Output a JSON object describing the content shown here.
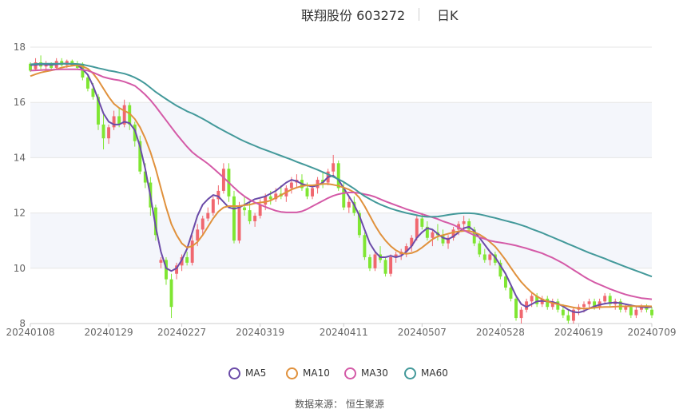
{
  "header": {
    "title": "联翔股份 603272",
    "period": "日K"
  },
  "footer": {
    "source": "数据来源： 恒生聚源"
  },
  "colors": {
    "up": "#f0676f",
    "down": "#7fe632",
    "grid": "#e6e6e6",
    "band": "#f4f6fb",
    "axis": "#666666"
  },
  "chart_data": {
    "type": "candlestick",
    "y_ticks": [
      "8",
      "10",
      "12",
      "14",
      "16",
      "18"
    ],
    "ylim": [
      8,
      18
    ],
    "x_ticks": [
      "20240108",
      "20240129",
      "20240227",
      "20240319",
      "20240411",
      "20240507",
      "20240528",
      "20240619",
      "20240709"
    ],
    "x_tick_index": [
      0,
      15,
      29,
      44,
      60,
      75,
      90,
      105,
      119
    ],
    "n_days": 120,
    "candles_ohlc": [
      [
        17.4,
        17.45,
        17.1,
        17.15
      ],
      [
        17.2,
        17.6,
        17.15,
        17.45
      ],
      [
        17.45,
        17.7,
        17.2,
        17.3
      ],
      [
        17.3,
        17.5,
        17.15,
        17.35
      ],
      [
        17.35,
        17.45,
        17.2,
        17.25
      ],
      [
        17.25,
        17.6,
        17.2,
        17.5
      ],
      [
        17.5,
        17.6,
        17.3,
        17.35
      ],
      [
        17.35,
        17.55,
        17.25,
        17.5
      ],
      [
        17.5,
        17.55,
        17.3,
        17.35
      ],
      [
        17.35,
        17.5,
        17.2,
        17.25
      ],
      [
        17.4,
        17.45,
        16.8,
        16.9
      ],
      [
        16.9,
        17.0,
        16.4,
        16.5
      ],
      [
        16.5,
        16.7,
        16.1,
        16.2
      ],
      [
        16.2,
        16.3,
        15.0,
        15.2
      ],
      [
        15.2,
        15.6,
        14.3,
        14.7
      ],
      [
        14.7,
        15.2,
        14.5,
        15.1
      ],
      [
        15.1,
        15.7,
        15.0,
        15.5
      ],
      [
        15.5,
        15.8,
        15.1,
        15.2
      ],
      [
        15.2,
        16.1,
        15.1,
        15.9
      ],
      [
        15.9,
        16.0,
        15.0,
        15.2
      ],
      [
        15.2,
        15.3,
        14.4,
        14.6
      ],
      [
        14.6,
        14.8,
        13.4,
        13.5
      ],
      [
        13.5,
        13.8,
        12.9,
        13.1
      ],
      [
        13.1,
        13.3,
        11.9,
        12.2
      ],
      [
        12.2,
        12.3,
        11.0,
        11.2
      ],
      [
        10.2,
        10.4,
        10.0,
        10.3
      ],
      [
        10.3,
        10.4,
        9.4,
        9.6
      ],
      [
        9.6,
        9.8,
        8.2,
        8.6
      ],
      [
        9.8,
        10.2,
        9.6,
        10.1
      ],
      [
        10.1,
        10.5,
        9.9,
        10.4
      ],
      [
        10.4,
        10.6,
        10.1,
        10.2
      ],
      [
        10.2,
        11.2,
        10.1,
        11.0
      ],
      [
        11.0,
        11.6,
        10.8,
        11.4
      ],
      [
        11.4,
        11.9,
        11.2,
        11.8
      ],
      [
        11.8,
        12.2,
        11.7,
        12.0
      ],
      [
        12.0,
        12.6,
        11.9,
        12.5
      ],
      [
        12.5,
        13.0,
        12.3,
        12.8
      ],
      [
        12.8,
        13.8,
        12.7,
        13.6
      ],
      [
        13.6,
        13.8,
        12.4,
        12.6
      ],
      [
        12.6,
        12.8,
        10.9,
        11.0
      ],
      [
        11.0,
        12.4,
        10.9,
        12.2
      ],
      [
        12.2,
        12.6,
        11.9,
        12.1
      ],
      [
        12.1,
        12.4,
        11.6,
        11.7
      ],
      [
        11.7,
        12.0,
        11.5,
        11.9
      ],
      [
        11.9,
        12.5,
        11.8,
        12.3
      ],
      [
        12.3,
        12.7,
        12.1,
        12.6
      ],
      [
        12.6,
        12.8,
        12.3,
        12.5
      ],
      [
        12.5,
        12.9,
        12.4,
        12.7
      ],
      [
        12.7,
        13.0,
        12.5,
        12.6
      ],
      [
        12.6,
        13.0,
        12.4,
        12.9
      ],
      [
        12.9,
        13.3,
        12.7,
        13.1
      ],
      [
        13.1,
        13.4,
        12.9,
        13.2
      ],
      [
        13.2,
        13.4,
        12.8,
        12.9
      ],
      [
        12.9,
        13.1,
        12.5,
        12.6
      ],
      [
        12.6,
        13.0,
        12.5,
        12.9
      ],
      [
        12.9,
        13.3,
        12.7,
        13.2
      ],
      [
        13.2,
        13.5,
        12.9,
        13.1
      ],
      [
        13.1,
        13.6,
        13.0,
        13.5
      ],
      [
        13.5,
        14.1,
        13.3,
        13.8
      ],
      [
        13.8,
        13.9,
        12.8,
        12.9
      ],
      [
        12.9,
        13.1,
        12.1,
        12.2
      ],
      [
        12.2,
        12.6,
        12.0,
        12.4
      ],
      [
        12.4,
        12.6,
        11.9,
        12.0
      ],
      [
        12.0,
        12.1,
        11.1,
        11.2
      ],
      [
        11.2,
        11.3,
        10.3,
        10.4
      ],
      [
        10.4,
        10.5,
        9.9,
        10.0
      ],
      [
        10.0,
        10.6,
        9.9,
        10.5
      ],
      [
        10.5,
        10.8,
        10.2,
        10.3
      ],
      [
        10.3,
        10.4,
        9.7,
        9.8
      ],
      [
        9.8,
        10.5,
        9.7,
        10.4
      ],
      [
        10.4,
        10.6,
        10.2,
        10.5
      ],
      [
        10.5,
        10.7,
        10.3,
        10.6
      ],
      [
        10.6,
        10.9,
        10.4,
        10.8
      ],
      [
        10.8,
        11.2,
        10.6,
        11.1
      ],
      [
        11.1,
        11.9,
        11.0,
        11.8
      ],
      [
        11.8,
        12.0,
        11.4,
        11.5
      ],
      [
        11.5,
        11.7,
        11.0,
        11.1
      ],
      [
        11.1,
        11.4,
        10.8,
        11.3
      ],
      [
        11.3,
        11.6,
        11.0,
        11.2
      ],
      [
        11.2,
        11.4,
        10.8,
        10.9
      ],
      [
        10.9,
        11.2,
        10.7,
        11.1
      ],
      [
        11.1,
        11.5,
        11.0,
        11.4
      ],
      [
        11.4,
        11.7,
        11.2,
        11.6
      ],
      [
        11.6,
        11.9,
        11.4,
        11.7
      ],
      [
        11.7,
        11.8,
        11.3,
        11.4
      ],
      [
        11.4,
        11.5,
        10.8,
        10.9
      ],
      [
        10.9,
        11.0,
        10.4,
        10.5
      ],
      [
        10.5,
        10.7,
        10.2,
        10.3
      ],
      [
        10.3,
        10.6,
        10.1,
        10.5
      ],
      [
        10.5,
        10.6,
        10.1,
        10.2
      ],
      [
        10.2,
        10.3,
        9.6,
        9.7
      ],
      [
        9.7,
        9.8,
        9.2,
        9.3
      ],
      [
        9.3,
        9.4,
        8.8,
        8.9
      ],
      [
        8.9,
        9.0,
        8.1,
        8.2
      ],
      [
        8.2,
        8.6,
        8.0,
        8.5
      ],
      [
        8.5,
        8.9,
        8.4,
        8.8
      ],
      [
        8.8,
        9.1,
        8.6,
        9.0
      ],
      [
        9.0,
        9.1,
        8.6,
        8.7
      ],
      [
        8.7,
        9.0,
        8.6,
        8.9
      ],
      [
        8.9,
        9.0,
        8.5,
        8.6
      ],
      [
        8.6,
        8.9,
        8.5,
        8.8
      ],
      [
        8.8,
        8.9,
        8.4,
        8.5
      ],
      [
        8.5,
        8.7,
        8.2,
        8.3
      ],
      [
        8.3,
        8.5,
        8.0,
        8.1
      ],
      [
        8.1,
        8.6,
        8.0,
        8.5
      ],
      [
        8.5,
        8.7,
        8.3,
        8.6
      ],
      [
        8.6,
        8.8,
        8.4,
        8.7
      ],
      [
        8.7,
        8.9,
        8.5,
        8.8
      ],
      [
        8.8,
        8.9,
        8.5,
        8.6
      ],
      [
        8.6,
        8.9,
        8.5,
        8.8
      ],
      [
        8.8,
        9.1,
        8.7,
        9.0
      ],
      [
        9.0,
        9.1,
        8.6,
        8.7
      ],
      [
        8.7,
        8.9,
        8.5,
        8.8
      ],
      [
        8.8,
        8.9,
        8.4,
        8.5
      ],
      [
        8.5,
        8.7,
        8.4,
        8.6
      ],
      [
        8.6,
        8.7,
        8.2,
        8.3
      ],
      [
        8.3,
        8.6,
        8.2,
        8.5
      ],
      [
        8.5,
        8.7,
        8.4,
        8.6
      ],
      [
        8.6,
        8.7,
        8.4,
        8.5
      ],
      [
        8.5,
        8.6,
        8.2,
        8.3
      ]
    ],
    "series": [
      {
        "name": "MA5",
        "color": "#6b4ba8",
        "values": [
          17.35,
          17.36,
          17.38,
          17.37,
          17.36,
          17.38,
          17.4,
          17.4,
          17.39,
          17.36,
          17.2,
          17.0,
          16.6,
          16.1,
          15.6,
          15.3,
          15.2,
          15.2,
          15.3,
          15.25,
          15.0,
          14.4,
          13.6,
          12.6,
          11.5,
          10.6,
          10.0,
          9.9,
          10.0,
          10.3,
          10.7,
          11.3,
          11.9,
          12.3,
          12.5,
          12.65,
          12.6,
          12.4,
          12.2,
          12.15,
          12.2,
          12.3,
          12.4,
          12.5,
          12.55,
          12.6,
          12.7,
          12.8,
          12.95,
          13.1,
          13.2,
          13.15,
          13.05,
          13.0,
          12.95,
          13.0,
          13.1,
          13.3,
          13.35,
          13.2,
          12.9,
          12.6,
          12.3,
          11.9,
          11.4,
          10.9,
          10.6,
          10.4,
          10.4,
          10.45,
          10.4,
          10.45,
          10.6,
          10.8,
          11.1,
          11.3,
          11.45,
          11.4,
          11.25,
          11.1,
          11.05,
          11.15,
          11.3,
          11.45,
          11.5,
          11.35,
          11.1,
          10.85,
          10.6,
          10.4,
          10.1,
          9.8,
          9.4,
          9.0,
          8.7,
          8.6,
          8.7,
          8.8,
          8.82,
          8.8,
          8.78,
          8.72,
          8.62,
          8.5,
          8.42,
          8.4,
          8.45,
          8.55,
          8.62,
          8.68,
          8.72,
          8.75,
          8.76,
          8.74,
          8.7,
          8.66,
          8.62,
          8.6,
          8.58,
          8.6
        ]
      },
      {
        "name": "MA10",
        "color": "#e0913c",
        "values": [
          16.95,
          17.02,
          17.08,
          17.12,
          17.16,
          17.2,
          17.26,
          17.3,
          17.33,
          17.35,
          17.3,
          17.22,
          17.05,
          16.8,
          16.5,
          16.2,
          15.95,
          15.8,
          15.7,
          15.6,
          15.4,
          15.1,
          14.7,
          14.2,
          13.6,
          12.9,
          12.2,
          11.6,
          11.2,
          10.9,
          10.75,
          10.8,
          10.95,
          11.2,
          11.5,
          11.8,
          12.05,
          12.2,
          12.25,
          12.25,
          12.25,
          12.28,
          12.3,
          12.35,
          12.38,
          12.4,
          12.45,
          12.55,
          12.65,
          12.75,
          12.85,
          12.92,
          12.97,
          13.0,
          13.0,
          13.02,
          13.05,
          13.05,
          13.02,
          12.98,
          12.92,
          12.85,
          12.75,
          12.55,
          12.25,
          11.9,
          11.55,
          11.25,
          11.0,
          10.8,
          10.65,
          10.55,
          10.52,
          10.55,
          10.62,
          10.75,
          10.9,
          11.05,
          11.15,
          11.2,
          11.25,
          11.3,
          11.33,
          11.35,
          11.35,
          11.3,
          11.22,
          11.1,
          10.95,
          10.78,
          10.55,
          10.3,
          10.02,
          9.75,
          9.5,
          9.3,
          9.12,
          8.98,
          8.88,
          8.8,
          8.74,
          8.7,
          8.66,
          8.62,
          8.58,
          8.55,
          8.54,
          8.55,
          8.57,
          8.59,
          8.6,
          8.6,
          8.61,
          8.62,
          8.62,
          8.63,
          8.63,
          8.63,
          8.63,
          8.62
        ]
      },
      {
        "name": "MA30",
        "color": "#d45aa7",
        "values": [
          17.15,
          17.16,
          17.17,
          17.18,
          17.18,
          17.19,
          17.2,
          17.2,
          17.2,
          17.2,
          17.18,
          17.15,
          17.08,
          17.0,
          16.92,
          16.87,
          16.83,
          16.8,
          16.75,
          16.68,
          16.6,
          16.45,
          16.28,
          16.08,
          15.85,
          15.6,
          15.35,
          15.1,
          14.85,
          14.62,
          14.4,
          14.2,
          14.05,
          13.92,
          13.78,
          13.62,
          13.45,
          13.28,
          13.1,
          12.92,
          12.75,
          12.6,
          12.48,
          12.38,
          12.3,
          12.22,
          12.15,
          12.08,
          12.04,
          12.02,
          12.02,
          12.02,
          12.06,
          12.14,
          12.24,
          12.34,
          12.44,
          12.54,
          12.62,
          12.68,
          12.72,
          12.74,
          12.74,
          12.72,
          12.68,
          12.64,
          12.58,
          12.5,
          12.42,
          12.35,
          12.28,
          12.21,
          12.14,
          12.08,
          12.02,
          11.96,
          11.9,
          11.84,
          11.78,
          11.7,
          11.64,
          11.57,
          11.48,
          11.38,
          11.28,
          11.2,
          11.12,
          11.06,
          11.0,
          10.96,
          10.93,
          10.9,
          10.86,
          10.82,
          10.77,
          10.72,
          10.66,
          10.6,
          10.54,
          10.46,
          10.38,
          10.28,
          10.18,
          10.06,
          9.94,
          9.82,
          9.7,
          9.59,
          9.49,
          9.41,
          9.33,
          9.25,
          9.18,
          9.11,
          9.05,
          9.0,
          8.96,
          8.92,
          8.9,
          8.88
        ]
      },
      {
        "name": "MA60",
        "color": "#43999a",
        "values": [
          17.38,
          17.39,
          17.4,
          17.4,
          17.4,
          17.4,
          17.4,
          17.4,
          17.4,
          17.39,
          17.37,
          17.33,
          17.29,
          17.24,
          17.2,
          17.15,
          17.12,
          17.08,
          17.04,
          16.98,
          16.9,
          16.8,
          16.68,
          16.53,
          16.38,
          16.25,
          16.12,
          16.0,
          15.88,
          15.78,
          15.68,
          15.6,
          15.51,
          15.41,
          15.3,
          15.19,
          15.08,
          14.98,
          14.88,
          14.78,
          14.68,
          14.59,
          14.51,
          14.43,
          14.35,
          14.28,
          14.21,
          14.14,
          14.07,
          14.0,
          13.93,
          13.85,
          13.78,
          13.71,
          13.64,
          13.56,
          13.48,
          13.4,
          13.31,
          13.22,
          13.12,
          13.0,
          12.88,
          12.74,
          12.61,
          12.5,
          12.4,
          12.31,
          12.23,
          12.16,
          12.1,
          12.05,
          12.0,
          11.96,
          11.92,
          11.88,
          11.86,
          11.86,
          11.87,
          11.9,
          11.93,
          11.96,
          11.98,
          11.99,
          11.99,
          11.98,
          11.95,
          11.91,
          11.86,
          11.82,
          11.77,
          11.72,
          11.67,
          11.62,
          11.56,
          11.5,
          11.42,
          11.35,
          11.28,
          11.2,
          11.12,
          11.04,
          10.96,
          10.88,
          10.8,
          10.72,
          10.64,
          10.56,
          10.49,
          10.42,
          10.35,
          10.27,
          10.2,
          10.12,
          10.05,
          9.98,
          9.91,
          9.84,
          9.77,
          9.7
        ]
      }
    ]
  }
}
